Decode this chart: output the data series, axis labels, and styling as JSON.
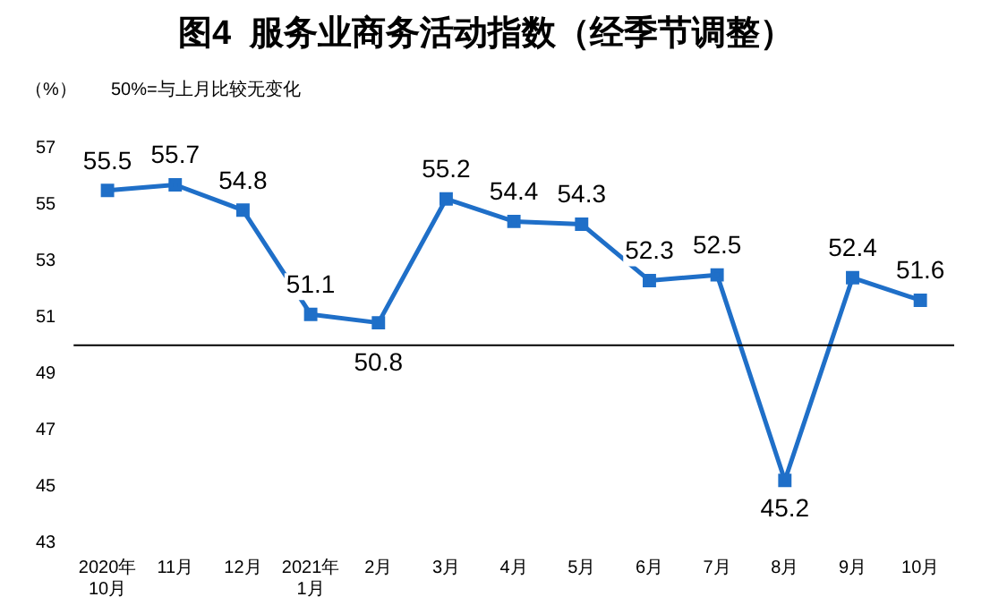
{
  "chart_data": {
    "type": "line",
    "title": "图4  服务业商务活动指数（经季节调整）",
    "ylabel": "（%）",
    "annotations": [
      "50%=与上月比较无变化"
    ],
    "categories": [
      "2020年\n10月",
      "11月",
      "12月",
      "2021年\n1月",
      "2月",
      "3月",
      "4月",
      "5月",
      "6月",
      "7月",
      "8月",
      "9月",
      "10月"
    ],
    "series": [
      {
        "color": "#1f6fc8",
        "values": [
          55.5,
          55.7,
          54.8,
          51.1,
          50.8,
          55.2,
          54.4,
          54.3,
          52.3,
          52.5,
          45.2,
          52.4,
          51.6
        ]
      }
    ],
    "ylim": [
      43,
      57
    ],
    "yticks": [
      43,
      45,
      47,
      49,
      51,
      53,
      55,
      57
    ],
    "ref_lines": [
      {
        "axis": "y",
        "value": 50,
        "color": "#000000"
      }
    ],
    "data_labels": true,
    "marker": "square",
    "line_style": "solid",
    "grid": false,
    "legend": false
  }
}
